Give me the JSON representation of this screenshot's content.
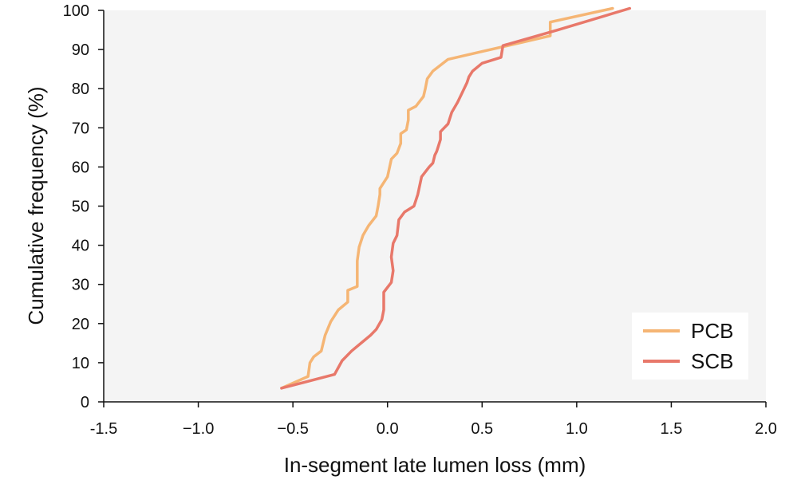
{
  "chart_data": {
    "type": "line",
    "title": "",
    "xlabel": "In-segment late lumen loss (mm)",
    "ylabel": "Cumulative frequency (%)",
    "xlim": [
      -1.5,
      2.0
    ],
    "ylim": [
      0,
      100
    ],
    "x_ticks": [
      -1.5,
      -1.0,
      -0.5,
      0.0,
      0.5,
      1.0,
      1.5,
      2.0
    ],
    "x_tick_labels": [
      "-1.5",
      "−1.0",
      "−0.5",
      "0.0",
      "0.5",
      "1.0",
      "1.5",
      "2.0"
    ],
    "y_ticks": [
      0,
      10,
      20,
      30,
      40,
      50,
      60,
      70,
      80,
      90,
      100
    ],
    "y_tick_labels": [
      "0",
      "10",
      "20",
      "30",
      "40",
      "50",
      "60",
      "70",
      "80",
      "90",
      "100"
    ],
    "grid": false,
    "background": "#f4f4f4",
    "legend_position": "bottom-right",
    "series": [
      {
        "name": "PCB",
        "color": "#f5b574",
        "points": [
          [
            -0.56,
            3.5
          ],
          [
            -0.42,
            6.5
          ],
          [
            -0.41,
            10
          ],
          [
            -0.39,
            11.5
          ],
          [
            -0.35,
            13
          ],
          [
            -0.33,
            17
          ],
          [
            -0.3,
            20.5
          ],
          [
            -0.26,
            23.5
          ],
          [
            -0.21,
            25.5
          ],
          [
            -0.21,
            28.5
          ],
          [
            -0.16,
            29.5
          ],
          [
            -0.16,
            32.5
          ],
          [
            -0.16,
            36
          ],
          [
            -0.15,
            39.5
          ],
          [
            -0.13,
            42.5
          ],
          [
            -0.1,
            45
          ],
          [
            -0.06,
            47.5
          ],
          [
            -0.05,
            50
          ],
          [
            -0.04,
            53
          ],
          [
            -0.04,
            54.5
          ],
          [
            0.0,
            57.5
          ],
          [
            0.02,
            62
          ],
          [
            0.05,
            63.5
          ],
          [
            0.07,
            66
          ],
          [
            0.07,
            68.5
          ],
          [
            0.1,
            69.5
          ],
          [
            0.11,
            72
          ],
          [
            0.11,
            74.5
          ],
          [
            0.15,
            75.5
          ],
          [
            0.19,
            78
          ],
          [
            0.2,
            80
          ],
          [
            0.21,
            82.5
          ],
          [
            0.24,
            84.5
          ],
          [
            0.32,
            87.5
          ],
          [
            0.5,
            89.5
          ],
          [
            0.86,
            93.5
          ],
          [
            0.86,
            97
          ],
          [
            1.19,
            100.5
          ]
        ]
      },
      {
        "name": "SCB",
        "color": "#e8786a",
        "points": [
          [
            -0.56,
            3.5
          ],
          [
            -0.28,
            7
          ],
          [
            -0.24,
            10.5
          ],
          [
            -0.19,
            13
          ],
          [
            -0.14,
            15
          ],
          [
            -0.09,
            17
          ],
          [
            -0.06,
            18.5
          ],
          [
            -0.03,
            21
          ],
          [
            -0.02,
            23.5
          ],
          [
            -0.02,
            28
          ],
          [
            0.02,
            30.5
          ],
          [
            0.03,
            33.5
          ],
          [
            0.02,
            37
          ],
          [
            0.03,
            40.5
          ],
          [
            0.05,
            42.5
          ],
          [
            0.06,
            46.5
          ],
          [
            0.09,
            48.5
          ],
          [
            0.14,
            50
          ],
          [
            0.16,
            53
          ],
          [
            0.18,
            57.5
          ],
          [
            0.22,
            60
          ],
          [
            0.24,
            61
          ],
          [
            0.25,
            63
          ],
          [
            0.26,
            64
          ],
          [
            0.28,
            67
          ],
          [
            0.28,
            69
          ],
          [
            0.32,
            71
          ],
          [
            0.34,
            74
          ],
          [
            0.37,
            76.5
          ],
          [
            0.39,
            78.5
          ],
          [
            0.42,
            81.5
          ],
          [
            0.43,
            83
          ],
          [
            0.45,
            84.5
          ],
          [
            0.5,
            86.5
          ],
          [
            0.6,
            88
          ],
          [
            0.61,
            91
          ],
          [
            0.9,
            95
          ],
          [
            1.28,
            100.5
          ]
        ]
      }
    ]
  }
}
